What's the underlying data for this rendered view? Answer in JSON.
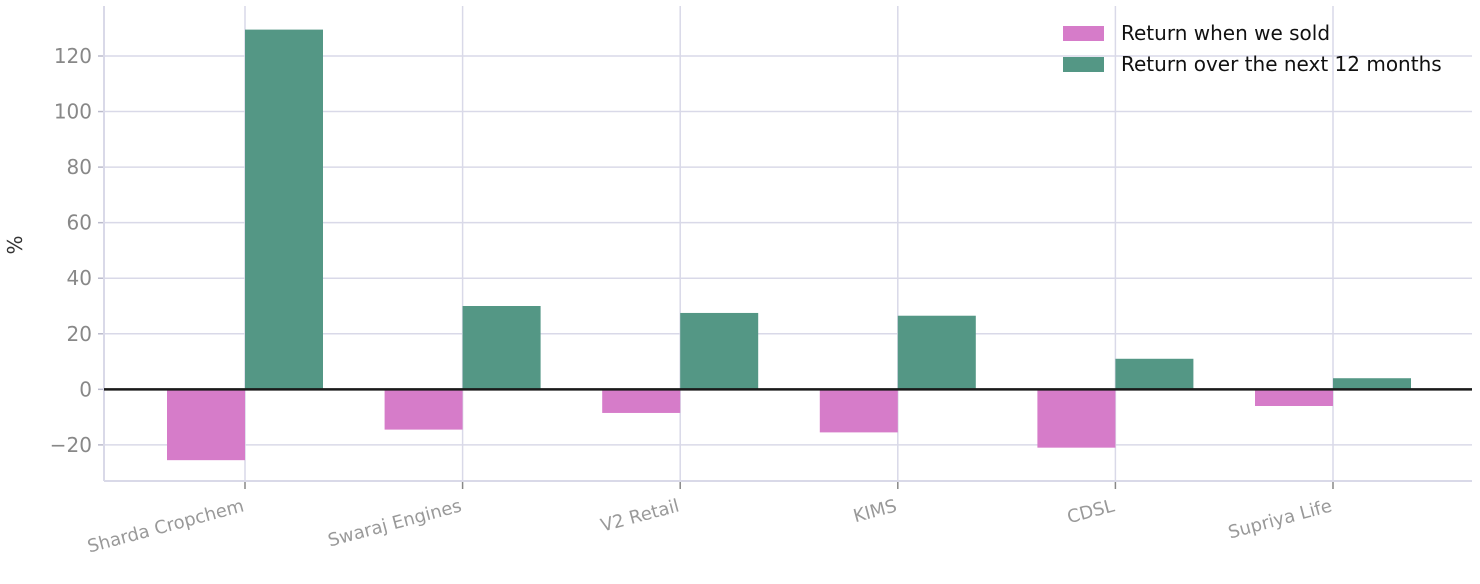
{
  "chart_data": {
    "type": "bar",
    "title": "",
    "xlabel": "",
    "ylabel": "%",
    "categories": [
      "Sharda Cropchem",
      "Swaraj Engines",
      "V2 Retail",
      "KIMS",
      "CDSL",
      "Supriya Life"
    ],
    "series": [
      {
        "name": "Return when we sold",
        "color": "#d67cc9",
        "values": [
          -25.5,
          -14.5,
          -8.5,
          -15.5,
          -21,
          -6
        ]
      },
      {
        "name": "Return over the next 12 months",
        "color": "#549785",
        "values": [
          129.5,
          30,
          27.5,
          26.5,
          11,
          4
        ]
      }
    ],
    "ylim": [
      -33,
      138
    ],
    "yticks": [
      -20,
      0,
      20,
      40,
      60,
      80,
      100,
      120
    ],
    "ytick_labels": [
      "−20",
      "0",
      "20",
      "40",
      "60",
      "80",
      "100",
      "120"
    ],
    "grid": true,
    "legend": "top-right",
    "zero_line_color": "#1a1a1a",
    "grid_color": "#d9d9e8"
  }
}
